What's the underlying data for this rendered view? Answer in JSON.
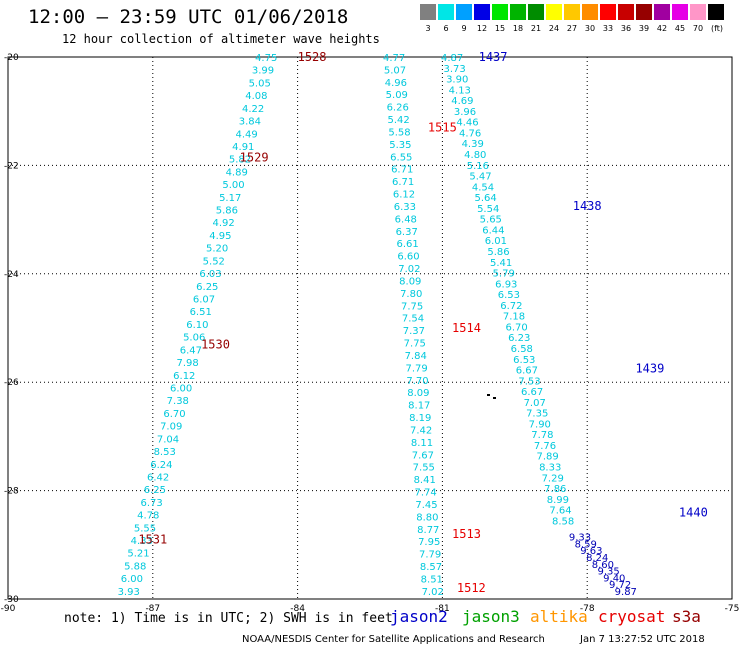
{
  "title": "12:00 – 23:59 UTC 01/06/2018",
  "subtitle": "12 hour collection of altimeter wave heights",
  "legend": {
    "unit": "(ft)",
    "entries": [
      {
        "label": "3",
        "color": "#808080"
      },
      {
        "label": "6",
        "color": "#00e6e6"
      },
      {
        "label": "9",
        "color": "#00a0ff"
      },
      {
        "label": "12",
        "color": "#0000e6"
      },
      {
        "label": "15",
        "color": "#00e600"
      },
      {
        "label": "18",
        "color": "#00b400"
      },
      {
        "label": "21",
        "color": "#008c00"
      },
      {
        "label": "24",
        "color": "#ffff00"
      },
      {
        "label": "27",
        "color": "#ffc800"
      },
      {
        "label": "30",
        "color": "#ff8c00"
      },
      {
        "label": "33",
        "color": "#ff0000"
      },
      {
        "label": "36",
        "color": "#c80000"
      },
      {
        "label": "39",
        "color": "#960000"
      },
      {
        "label": "42",
        "color": "#a000a0"
      },
      {
        "label": "45",
        "color": "#e600e6"
      },
      {
        "label": "70",
        "color": "#ff96c8"
      },
      {
        "label": "",
        "color": "#000000"
      }
    ]
  },
  "map": {
    "lon_ticks": [
      -90,
      -87,
      -84,
      -81,
      -78,
      -75
    ],
    "lon_labels": [
      "-90",
      "-87",
      "-84",
      "-81",
      "-78",
      "-75"
    ],
    "lat_ticks": [
      -20,
      -22,
      -24,
      -26,
      -28,
      -30
    ],
    "lat_labels": [
      "-20",
      "-22",
      "-24",
      "-26",
      "-28",
      "-30"
    ],
    "lon_range": [
      -90,
      -75
    ],
    "lat_range": [
      -30,
      -20
    ]
  },
  "tracks": [
    {
      "color": "#00c8dc",
      "start": [
        -84.65,
        -20.0
      ],
      "end": [
        -87.5,
        -29.85
      ],
      "values": [
        "4.75",
        "3.99",
        "5.05",
        "4.08",
        "4.22",
        "3.84",
        "4.49",
        "4.91",
        "5.82",
        "4.89",
        "5.00",
        "5.17",
        "5.86",
        "4.92",
        "4.95",
        "5.20",
        "5.52",
        "6.03",
        "6.25",
        "6.07",
        "6.51",
        "6.10",
        "5.06",
        "6.47",
        "7.98",
        "6.12",
        "6.00",
        "7.38",
        "6.70",
        "7.09",
        "7.04",
        "8.53",
        "6.24",
        "6.42",
        "6.25",
        "6.73",
        "4.78",
        "5.55",
        "4.33",
        "5.21",
        "5.88",
        "6.00",
        "3.93"
      ]
    },
    {
      "color": "#00c8dc",
      "start": [
        -82.0,
        -20.0
      ],
      "end": [
        -81.2,
        -29.85
      ],
      "values": [
        "4.77",
        "5.07",
        "4.96",
        "5.09",
        "6.26",
        "5.42",
        "5.58",
        "5.35",
        "6.55",
        "6.71",
        "6.71",
        "6.12",
        "6.33",
        "6.48",
        "6.37",
        "6.61",
        "6.60",
        "7.02",
        "8.09",
        "7.80",
        "7.75",
        "7.54",
        "7.37",
        "7.75",
        "7.84",
        "7.79",
        "7.70",
        "8.09",
        "8.17",
        "8.19",
        "7.42",
        "8.11",
        "7.67",
        "7.55",
        "8.41",
        "7.74",
        "7.45",
        "8.80",
        "8.77",
        "7.95",
        "7.79",
        "8.57",
        "8.51",
        "7.02"
      ]
    },
    {
      "color": "#00c8dc",
      "start": [
        -80.8,
        -20.0
      ],
      "end": [
        -78.5,
        -28.55
      ],
      "values": [
        "4.87",
        "3.73",
        "3.90",
        "4.13",
        "4.69",
        "3.96",
        "4.46",
        "4.76",
        "4.39",
        "4.80",
        "5.16",
        "5.47",
        "4.54",
        "5.64",
        "5.54",
        "5.65",
        "6.44",
        "6.01",
        "5.86",
        "5.41",
        "5.79",
        "6.93",
        "6.53",
        "6.72",
        "7.18",
        "6.70",
        "6.23",
        "6.58",
        "6.53",
        "6.67",
        "7.53",
        "6.67",
        "7.07",
        "7.35",
        "7.90",
        "7.78",
        "7.76",
        "7.89",
        "8.33",
        "7.29",
        "7.86",
        "8.99",
        "7.64",
        "8.58"
      ]
    },
    {
      "color": "#0000b4",
      "start": [
        -78.15,
        -28.85
      ],
      "end": [
        -77.2,
        -29.85
      ],
      "values": [
        "9.33",
        "8.59",
        "9.63",
        "8.24",
        "8.60",
        "9.35",
        "9.40",
        "9.72",
        "9.87"
      ]
    }
  ],
  "pass_labels": [
    {
      "text": "1528",
      "color": "#960000",
      "lon": -84.0,
      "lat": -20.0
    },
    {
      "text": "1529",
      "color": "#960000",
      "lon": -85.2,
      "lat": -21.85
    },
    {
      "text": "1530",
      "color": "#960000",
      "lon": -86.0,
      "lat": -25.3
    },
    {
      "text": "1531",
      "color": "#960000",
      "lon": -87.3,
      "lat": -28.9
    },
    {
      "text": "1437",
      "color": "#0000c8",
      "lon": -80.25,
      "lat": -20.0
    },
    {
      "text": "1438",
      "color": "#0000c8",
      "lon": -78.3,
      "lat": -22.75
    },
    {
      "text": "1439",
      "color": "#0000c8",
      "lon": -77.0,
      "lat": -25.75
    },
    {
      "text": "1440",
      "color": "#0000c8",
      "lon": -76.1,
      "lat": -28.4
    },
    {
      "text": "1515",
      "color": "#e60000",
      "lon": -81.3,
      "lat": -21.3
    },
    {
      "text": "1514",
      "color": "#e60000",
      "lon": -80.8,
      "lat": -25.0
    },
    {
      "text": "1513",
      "color": "#e60000",
      "lon": -80.8,
      "lat": -28.8
    },
    {
      "text": "1512",
      "color": "#e60000",
      "lon": -80.7,
      "lat": -29.8
    }
  ],
  "note": "note: 1) Time is in UTC; 2) SWH is in feet",
  "satellites": [
    {
      "name": "jason2",
      "color": "#0000c8"
    },
    {
      "name": "jason3",
      "color": "#00a000"
    },
    {
      "name": "altika",
      "color": "#ff9600"
    },
    {
      "name": "cryosat",
      "color": "#e60000"
    },
    {
      "name": "s3a",
      "color": "#960000"
    }
  ],
  "footer": "NOAA/NESDIS Center for Satellite Applications and Research",
  "timestamp": "Jan  7 13:27:52 UTC 2018"
}
